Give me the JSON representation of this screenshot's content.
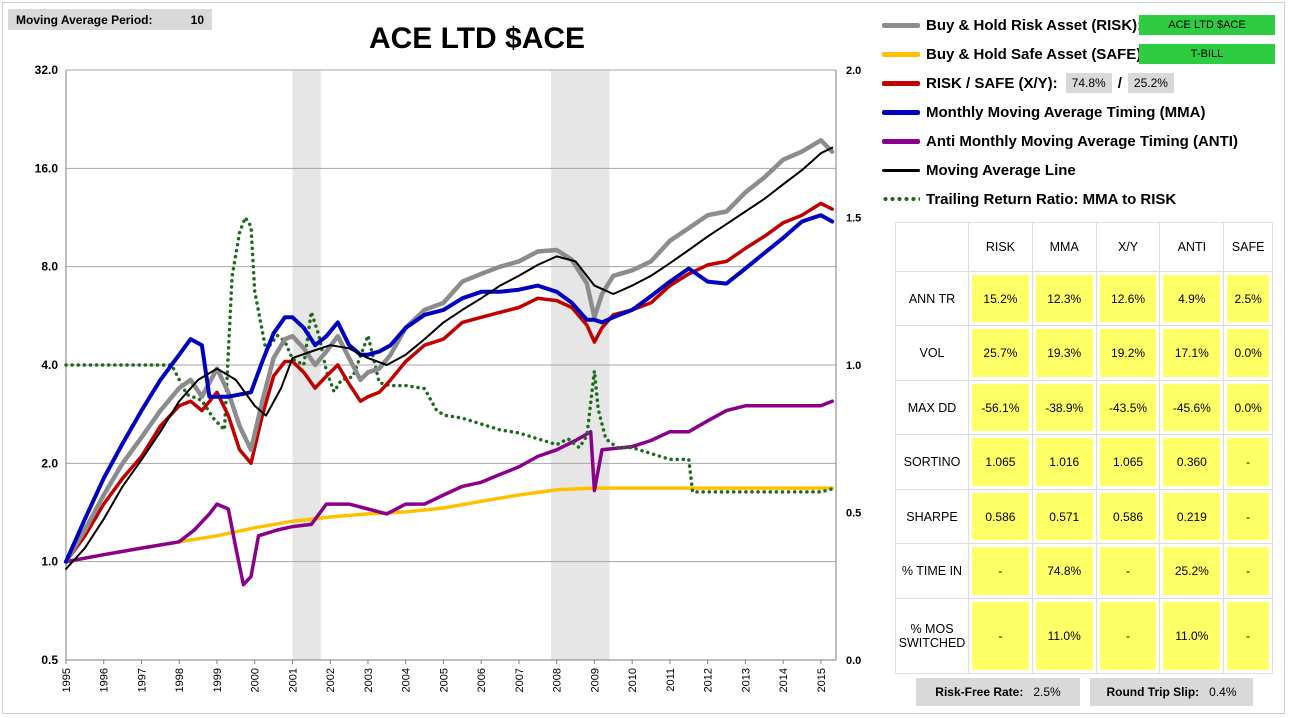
{
  "header": {
    "ma_label": "Moving Average Period:",
    "ma_value": "10"
  },
  "legend": {
    "risk": "Buy & Hold Risk Asset (RISK):",
    "risk_badge": "ACE LTD $ACE",
    "safe": "Buy & Hold Safe Asset (SAFE):",
    "safe_badge": "T-BILL",
    "xy": "RISK / SAFE (X/Y):",
    "xy_risk_pct": "74.8%",
    "xy_sep": "/",
    "xy_safe_pct": "25.2%",
    "mma": "Monthly Moving Average Timing (MMA)",
    "anti": "Anti Monthly Moving Average Timing (ANTI)",
    "ma_line": "Moving Average Line",
    "trailing": "Trailing Return Ratio: MMA to RISK"
  },
  "colors": {
    "risk": "#8c8c8c",
    "safe": "#ffc000",
    "xy": "#c00000",
    "mma": "#0000c0",
    "anti": "#8b008b",
    "ma_line": "#000000",
    "trailing": "#1e6b1e",
    "recession": "#e6e6e6",
    "badge_green": "#2ecc40",
    "cell_yellow": "#ffff66"
  },
  "stats": {
    "columns": [
      "RISK",
      "MMA",
      "X/Y",
      "ANTI",
      "SAFE"
    ],
    "rows": [
      {
        "label": "ANN TR",
        "values": [
          "15.2%",
          "12.3%",
          "12.6%",
          "4.9%",
          "2.5%"
        ]
      },
      {
        "label": "VOL",
        "values": [
          "25.7%",
          "19.3%",
          "19.2%",
          "17.1%",
          "0.0%"
        ]
      },
      {
        "label": "MAX DD",
        "values": [
          "-56.1%",
          "-38.9%",
          "-43.5%",
          "-45.6%",
          "0.0%"
        ]
      },
      {
        "label": "SORTINO",
        "values": [
          "1.065",
          "1.016",
          "1.065",
          "0.360",
          "-"
        ]
      },
      {
        "label": "SHARPE",
        "values": [
          "0.586",
          "0.571",
          "0.586",
          "0.219",
          "-"
        ]
      },
      {
        "label": "% TIME IN",
        "values": [
          "-",
          "74.8%",
          "-",
          "25.2%",
          "-"
        ]
      },
      {
        "label": "% MOS SWITCHED",
        "values": [
          "-",
          "11.0%",
          "-",
          "11.0%",
          "-"
        ]
      }
    ]
  },
  "footer": {
    "rf_label": "Risk-Free Rate:",
    "rf_value": "2.5%",
    "slip_label": "Round Trip Slip:",
    "slip_value": "0.4%"
  },
  "chart_data": {
    "type": "line",
    "title": "ACE LTD $ACE",
    "xlabel": "",
    "ylabel": "",
    "x_ticks": [
      "1995",
      "1996",
      "1997",
      "1998",
      "1999",
      "2000",
      "2001",
      "2002",
      "2003",
      "2004",
      "2005",
      "2006",
      "2007",
      "2008",
      "2009",
      "2010",
      "2011",
      "2012",
      "2013",
      "2014",
      "2015"
    ],
    "xlim": [
      1995,
      2015.4
    ],
    "y_scale": "log2",
    "ylim": [
      0.5,
      32
    ],
    "y_ticks": [
      "0.5",
      "1.0",
      "2.0",
      "4.0",
      "8.0",
      "16.0",
      "32.0"
    ],
    "y2lim": [
      0,
      2
    ],
    "y2_ticks": [
      "0.0",
      "0.5",
      "1.0",
      "1.5",
      "2.0"
    ],
    "shaded_periods": [
      [
        2001.0,
        2001.75
      ],
      [
        2007.85,
        2009.4
      ]
    ],
    "grid": true,
    "series": [
      {
        "key": "risk",
        "axis": "left",
        "x": [
          1995.0,
          1995.5,
          1996.0,
          1996.5,
          1997.0,
          1997.5,
          1998.0,
          1998.3,
          1998.6,
          1999.0,
          1999.3,
          1999.6,
          1999.9,
          2000.2,
          2000.5,
          2000.8,
          2001.0,
          2001.3,
          2001.6,
          2001.9,
          2002.2,
          2002.5,
          2002.8,
          2003.0,
          2003.3,
          2003.6,
          2004.0,
          2004.5,
          2005.0,
          2005.5,
          2006.0,
          2006.5,
          2007.0,
          2007.5,
          2008.0,
          2008.4,
          2008.8,
          2009.0,
          2009.2,
          2009.5,
          2010.0,
          2010.5,
          2011.0,
          2011.5,
          2012.0,
          2012.5,
          2013.0,
          2013.5,
          2014.0,
          2014.5,
          2015.0,
          2015.3
        ],
        "y": [
          1.0,
          1.25,
          1.6,
          2.0,
          2.4,
          2.9,
          3.4,
          3.6,
          3.2,
          3.9,
          3.3,
          2.6,
          2.2,
          3.1,
          4.2,
          4.8,
          4.9,
          4.5,
          4.0,
          4.4,
          4.9,
          4.2,
          3.6,
          3.8,
          3.9,
          4.3,
          5.2,
          5.9,
          6.2,
          7.2,
          7.6,
          8.0,
          8.3,
          8.9,
          9.0,
          8.4,
          7.1,
          5.6,
          6.6,
          7.5,
          7.8,
          8.3,
          9.6,
          10.5,
          11.5,
          11.8,
          13.5,
          15.0,
          17.0,
          18.0,
          19.5,
          18.0
        ]
      },
      {
        "key": "xy",
        "axis": "left",
        "x": [
          1995.0,
          1995.5,
          1996.0,
          1996.5,
          1997.0,
          1997.5,
          1998.0,
          1998.3,
          1998.6,
          1999.0,
          1999.3,
          1999.6,
          1999.9,
          2000.2,
          2000.5,
          2000.8,
          2001.0,
          2001.3,
          2001.6,
          2001.9,
          2002.2,
          2002.5,
          2002.8,
          2003.0,
          2003.3,
          2003.6,
          2004.0,
          2004.5,
          2005.0,
          2005.5,
          2006.0,
          2006.5,
          2007.0,
          2007.5,
          2008.0,
          2008.4,
          2008.8,
          2009.0,
          2009.2,
          2009.5,
          2010.0,
          2010.5,
          2011.0,
          2011.5,
          2012.0,
          2012.5,
          2013.0,
          2013.5,
          2014.0,
          2014.5,
          2015.0,
          2015.3
        ],
        "y": [
          1.0,
          1.2,
          1.5,
          1.8,
          2.1,
          2.6,
          3.0,
          3.1,
          2.9,
          3.3,
          2.8,
          2.2,
          2.0,
          2.8,
          3.7,
          4.1,
          4.1,
          3.8,
          3.4,
          3.7,
          4.0,
          3.5,
          3.1,
          3.2,
          3.3,
          3.6,
          4.1,
          4.6,
          4.8,
          5.4,
          5.6,
          5.8,
          6.0,
          6.4,
          6.3,
          6.0,
          5.3,
          4.7,
          5.2,
          5.7,
          5.9,
          6.2,
          7.0,
          7.6,
          8.1,
          8.3,
          9.1,
          9.9,
          10.9,
          11.5,
          12.5,
          12.0
        ]
      },
      {
        "key": "mma",
        "axis": "left",
        "x": [
          1995.0,
          1995.5,
          1996.0,
          1996.5,
          1997.0,
          1997.5,
          1998.0,
          1998.3,
          1998.6,
          1998.8,
          1999.0,
          1999.3,
          1999.6,
          1999.9,
          2000.2,
          2000.5,
          2000.8,
          2001.0,
          2001.3,
          2001.6,
          2001.9,
          2002.2,
          2002.5,
          2002.8,
          2003.0,
          2003.3,
          2003.6,
          2004.0,
          2004.5,
          2005.0,
          2005.5,
          2006.0,
          2006.5,
          2007.0,
          2007.5,
          2008.0,
          2008.4,
          2008.8,
          2009.0,
          2009.2,
          2009.5,
          2010.0,
          2010.5,
          2011.0,
          2011.5,
          2012.0,
          2012.5,
          2013.0,
          2013.5,
          2014.0,
          2014.5,
          2015.0,
          2015.3
        ],
        "y": [
          1.0,
          1.35,
          1.8,
          2.3,
          2.9,
          3.6,
          4.3,
          4.8,
          4.6,
          3.2,
          3.2,
          3.2,
          3.25,
          3.3,
          4.1,
          5.0,
          5.6,
          5.6,
          5.2,
          4.6,
          4.9,
          5.4,
          4.6,
          4.3,
          4.3,
          4.4,
          4.6,
          5.2,
          5.7,
          5.9,
          6.4,
          6.7,
          6.7,
          6.8,
          7.0,
          6.7,
          6.2,
          5.5,
          5.5,
          5.4,
          5.6,
          5.9,
          6.5,
          7.2,
          7.9,
          7.2,
          7.1,
          7.9,
          8.8,
          9.8,
          11.0,
          11.5,
          11.0
        ]
      },
      {
        "key": "anti",
        "axis": "left",
        "x": [
          1995.0,
          1996.0,
          1997.0,
          1998.0,
          1998.4,
          1998.8,
          1999.0,
          1999.3,
          1999.5,
          1999.7,
          1999.9,
          2000.1,
          2000.6,
          2001.0,
          2001.5,
          2001.9,
          2002.5,
          2003.0,
          2003.5,
          2004.0,
          2004.5,
          2005.0,
          2005.5,
          2006.0,
          2006.5,
          2007.0,
          2007.5,
          2008.0,
          2008.5,
          2008.9,
          2009.0,
          2009.2,
          2010.0,
          2010.5,
          2011.0,
          2011.5,
          2012.0,
          2012.5,
          2013.0,
          2013.5,
          2014.0,
          2014.5,
          2015.0,
          2015.3
        ],
        "y": [
          1.0,
          1.05,
          1.1,
          1.15,
          1.25,
          1.4,
          1.5,
          1.45,
          1.1,
          0.85,
          0.9,
          1.2,
          1.25,
          1.28,
          1.3,
          1.5,
          1.5,
          1.45,
          1.4,
          1.5,
          1.5,
          1.6,
          1.7,
          1.75,
          1.85,
          1.95,
          2.1,
          2.2,
          2.35,
          2.5,
          1.65,
          2.2,
          2.25,
          2.35,
          2.5,
          2.5,
          2.7,
          2.9,
          3.0,
          3.0,
          3.0,
          3.0,
          3.0,
          3.1
        ]
      },
      {
        "key": "safe",
        "axis": "left",
        "x": [
          1995.0,
          1996.0,
          1997.0,
          1998.0,
          1999.0,
          2000.0,
          2001.0,
          2002.0,
          2003.0,
          2004.0,
          2005.0,
          2006.0,
          2007.0,
          2008.0,
          2009.0,
          2010.0,
          2011.0,
          2012.0,
          2013.0,
          2014.0,
          2015.0,
          2015.3
        ],
        "y": [
          1.0,
          1.05,
          1.1,
          1.15,
          1.2,
          1.27,
          1.33,
          1.37,
          1.4,
          1.42,
          1.46,
          1.53,
          1.6,
          1.66,
          1.68,
          1.68,
          1.68,
          1.68,
          1.68,
          1.68,
          1.68,
          1.68
        ]
      },
      {
        "key": "ma_line",
        "axis": "left",
        "x": [
          1995.0,
          1995.5,
          1996.0,
          1996.5,
          1997.0,
          1997.5,
          1998.0,
          1998.5,
          1999.0,
          1999.5,
          2000.0,
          2000.3,
          2000.7,
          2001.0,
          2001.5,
          2002.0,
          2002.5,
          2003.0,
          2003.5,
          2004.0,
          2004.5,
          2005.0,
          2005.5,
          2006.0,
          2006.5,
          2007.0,
          2007.5,
          2008.0,
          2008.5,
          2009.0,
          2009.5,
          2010.0,
          2010.5,
          2011.0,
          2011.5,
          2012.0,
          2012.5,
          2013.0,
          2013.5,
          2014.0,
          2014.5,
          2015.0,
          2015.3
        ],
        "y": [
          0.95,
          1.1,
          1.35,
          1.7,
          2.05,
          2.5,
          3.1,
          3.6,
          3.9,
          3.6,
          3.0,
          2.8,
          3.4,
          4.2,
          4.4,
          4.6,
          4.5,
          4.2,
          4.0,
          4.3,
          4.8,
          5.4,
          5.9,
          6.4,
          7.0,
          7.5,
          8.1,
          8.6,
          8.3,
          7.0,
          6.6,
          7.0,
          7.5,
          8.2,
          9.0,
          9.9,
          10.8,
          11.8,
          12.9,
          14.3,
          15.8,
          17.8,
          18.5
        ]
      },
      {
        "key": "trailing",
        "axis": "right",
        "dotted": true,
        "x": [
          1995.0,
          1996.0,
          1997.0,
          1997.8,
          1998.2,
          1998.6,
          1998.9,
          1999.2,
          1999.4,
          1999.6,
          1999.75,
          1999.9,
          2000.0,
          2000.3,
          2000.6,
          2000.8,
          2001.0,
          2001.3,
          2001.5,
          2001.7,
          2001.9,
          2002.1,
          2002.3,
          2002.6,
          2003.0,
          2003.3,
          2003.6,
          2004.0,
          2004.5,
          2004.8,
          2005.0,
          2005.5,
          2006.0,
          2006.5,
          2007.0,
          2007.5,
          2008.0,
          2008.3,
          2008.6,
          2008.8,
          2009.0,
          2009.1,
          2009.3,
          2009.6,
          2010.0,
          2010.5,
          2011.0,
          2011.5,
          2011.6,
          2012.0,
          2013.0,
          2014.0,
          2015.0,
          2015.3
        ],
        "y": [
          1.0,
          1.0,
          1.0,
          1.0,
          0.9,
          0.88,
          0.82,
          0.78,
          1.3,
          1.45,
          1.5,
          1.47,
          1.25,
          1.05,
          1.1,
          1.08,
          1.02,
          1.0,
          1.18,
          1.1,
          0.98,
          0.91,
          0.95,
          0.96,
          1.1,
          0.94,
          0.93,
          0.93,
          0.92,
          0.85,
          0.83,
          0.82,
          0.8,
          0.78,
          0.77,
          0.75,
          0.73,
          0.75,
          0.72,
          0.76,
          0.98,
          0.85,
          0.75,
          0.72,
          0.72,
          0.7,
          0.68,
          0.68,
          0.57,
          0.57,
          0.57,
          0.57,
          0.57,
          0.58
        ]
      }
    ]
  }
}
